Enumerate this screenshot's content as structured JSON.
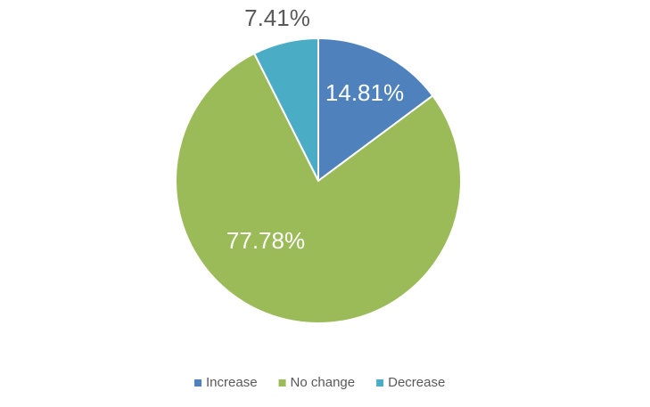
{
  "chart_data": {
    "type": "pie",
    "categories": [
      "Increase",
      "No change",
      "Decrease"
    ],
    "values": [
      14.81,
      77.78,
      7.41
    ],
    "value_labels": [
      "14.81%",
      "77.78%",
      "7.41%"
    ],
    "colors": [
      "#4f81bd",
      "#9bbb59",
      "#4bacc6"
    ],
    "legend": "bottom"
  }
}
